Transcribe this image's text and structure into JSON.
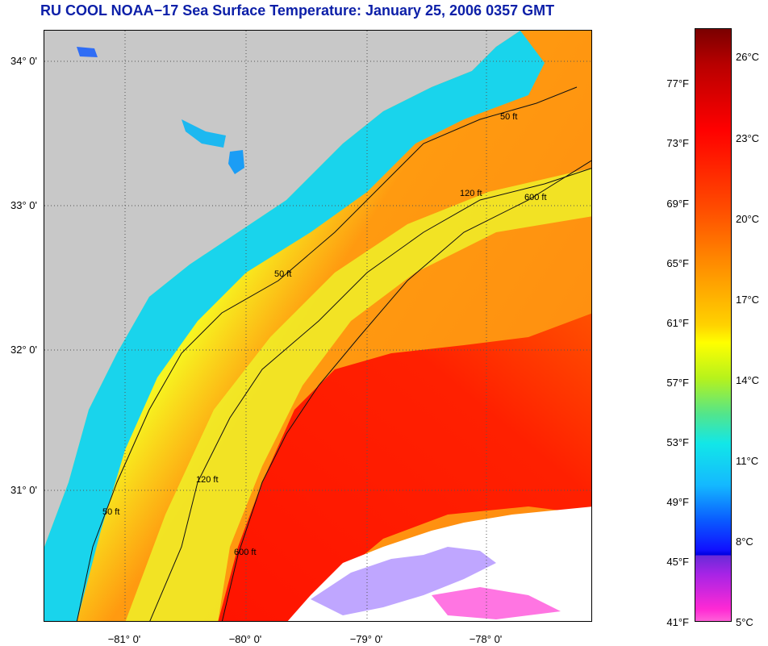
{
  "title": "RU COOL  NOAA−17  Sea Surface Temperature:  January 25, 2006 0357 GMT",
  "map": {
    "latitude_labels": [
      "34° 0'",
      "33° 0'",
      "32° 0'",
      "31° 0'"
    ],
    "longitude_labels": [
      "−81° 0'",
      "−80° 0'",
      "−79° 0'",
      "−78° 0'"
    ],
    "contour_labels": [
      "50 ft",
      "120 ft",
      "600 ft"
    ],
    "colors": {
      "land": "#c8c8c8",
      "cloud": "#ffffff",
      "gulf_stream": "#ff1a00"
    }
  },
  "colorbar": {
    "fahrenheit_labels": [
      "77°F",
      "73°F",
      "69°F",
      "65°F",
      "61°F",
      "57°F",
      "53°F",
      "49°F",
      "45°F",
      "41°F"
    ],
    "celsius_labels": [
      "26°C",
      "23°C",
      "20°C",
      "17°C",
      "14°C",
      "11°C",
      "8°C",
      "5°C"
    ]
  }
}
